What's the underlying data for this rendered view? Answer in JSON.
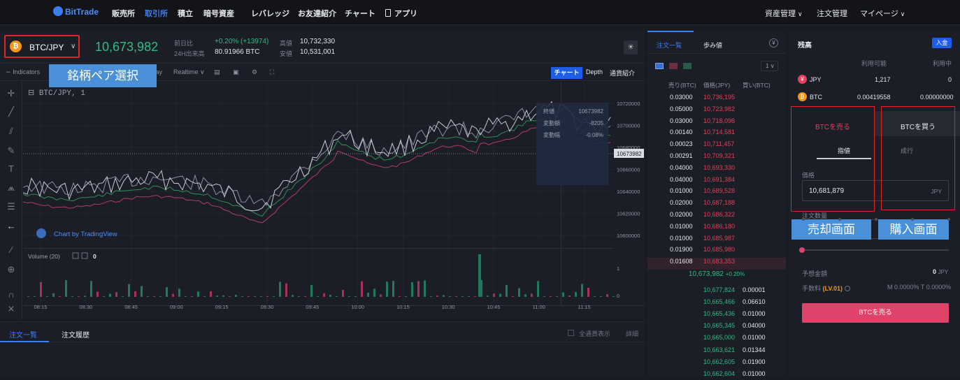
{
  "nav": {
    "logo": "BitTrade",
    "items": [
      "販売所",
      "取引所",
      "積立",
      "暗号資産",
      "レバレッジ",
      "お友達紹介",
      "チャート",
      "アプリ"
    ],
    "right": [
      "資産管理",
      "注文管理",
      "マイページ"
    ]
  },
  "ticker": {
    "pair": "BTC/JPY",
    "last_price": "10,673,982",
    "change_label": "前日比",
    "change_value": "+0.20% (+13974)",
    "volume_label": "24H出来高",
    "volume_value": "80.91966 BTC",
    "high_label": "高値",
    "high_value": "10,732,330",
    "low_label": "安値",
    "low_value": "10,531,001"
  },
  "chart_toolbar": {
    "indicators": "Indicators",
    "interval": "1 day",
    "realtime": "Realtime",
    "tabs": [
      "チャート",
      "Depth",
      "通貨紹介"
    ]
  },
  "chart": {
    "symbol_label": "BTC/JPY, 1",
    "watermark": "Chart by TradingView",
    "volume_label": "Volume (20)",
    "volume_value": "0",
    "price_ticks": [
      "10720000",
      "10700000",
      "10680000",
      "10660000",
      "10640000",
      "10620000",
      "10600000"
    ],
    "current_price_tag": "10673982",
    "volume_ticks": [
      "1",
      "0"
    ],
    "time_ticks": [
      "08:15",
      "08:30",
      "08:45",
      "09:00",
      "09:15",
      "09:30",
      "09:45",
      "10:00",
      "10:15",
      "10:30",
      "10:45",
      "11:00",
      "11:15"
    ],
    "tooltip": {
      "close_label": "終値",
      "close_value": "10673982",
      "change_label": "変動額",
      "change_value": "-8205",
      "rate_label": "変動幅",
      "rate_value": "-0.08%"
    }
  },
  "annotations": {
    "pair_select": "銘柄ペア選択",
    "sell_screen": "売却画面",
    "buy_screen": "購入画面"
  },
  "bottom": {
    "tabs": [
      "注文一覧",
      "注文履歴"
    ],
    "show_all": "全通貨表示",
    "details": "詳細"
  },
  "orderbook": {
    "tabs": [
      "注文一覧",
      "歩み値"
    ],
    "depth": "1",
    "headers": [
      "売り(BTC)",
      "価格(JPY)",
      "買い(BTC)"
    ],
    "asks": [
      {
        "qty": "0.03000",
        "price": "10,736,195"
      },
      {
        "qty": "0.05000",
        "price": "10,723,982"
      },
      {
        "qty": "0.03000",
        "price": "10,718,098"
      },
      {
        "qty": "0.00140",
        "price": "10,714,581"
      },
      {
        "qty": "0.00023",
        "price": "10,711,457"
      },
      {
        "qty": "0.00291",
        "price": "10,709,321"
      },
      {
        "qty": "0.04000",
        "price": "10,693,330"
      },
      {
        "qty": "0.04000",
        "price": "10,691,384"
      },
      {
        "qty": "0.01000",
        "price": "10,689,528"
      },
      {
        "qty": "0.02000",
        "price": "10,687,188"
      },
      {
        "qty": "0.02000",
        "price": "10,686,322"
      },
      {
        "qty": "0.01000",
        "price": "10,686,180"
      },
      {
        "qty": "0.01000",
        "price": "10,685,987"
      },
      {
        "qty": "0.01900",
        "price": "10,685,980"
      },
      {
        "qty": "0.01608",
        "price": "10,683,353"
      }
    ],
    "mid_price": "10,673,982",
    "mid_change": "+0.20%",
    "bids": [
      {
        "price": "10,677,824",
        "qty": "0.00001"
      },
      {
        "price": "10,665,466",
        "qty": "0.06610"
      },
      {
        "price": "10,665,436",
        "qty": "0.01000"
      },
      {
        "price": "10,665,345",
        "qty": "0.04000"
      },
      {
        "price": "10,665,000",
        "qty": "0.01000"
      },
      {
        "price": "10,663,621",
        "qty": "0.01344"
      },
      {
        "price": "10,662,605",
        "qty": "0.01900"
      },
      {
        "price": "10,662,604",
        "qty": "0.01000"
      }
    ]
  },
  "balance": {
    "title": "残高",
    "deposit": "入金",
    "col_available": "利用可能",
    "col_in_use": "利用中",
    "rows": [
      {
        "coin": "JPY",
        "available": "1,217",
        "in_use": "0"
      },
      {
        "coin": "BTC",
        "available": "0.00419558",
        "in_use": "0.00000000"
      }
    ]
  },
  "order_form": {
    "sell_tab": "BTCを売る",
    "buy_tab": "BTCを買う",
    "type_limit": "指値",
    "type_market": "成行",
    "price_label": "価格",
    "price_value": "10,681,879",
    "price_unit": "JPY",
    "qty_label": "注文数量",
    "slider_percent": 0,
    "est_label": "予想金額",
    "est_value": "0",
    "est_unit": "JPY",
    "fee_label": "手数料",
    "fee_level": "(LV.01)",
    "fee_value": "M 0.0000% T 0.0000%",
    "submit": "BTCを売る"
  },
  "colors": {
    "up": "#2ebd85",
    "down": "#e1415a",
    "accent": "#1d5ee6",
    "sell_button": "#e0436a",
    "annotation": "#4a90d9"
  }
}
